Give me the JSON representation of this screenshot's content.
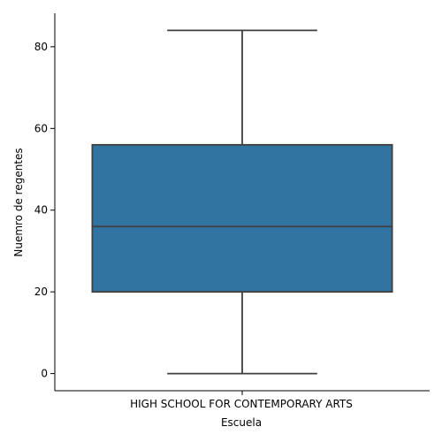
{
  "chart_data": {
    "type": "box",
    "xlabel": "Escuela",
    "ylabel": "Nuemro de regentes",
    "categories": [
      "HIGH SCHOOL FOR CONTEMPORARY ARTS"
    ],
    "boxes": [
      {
        "category": "HIGH SCHOOL FOR CONTEMPORARY ARTS",
        "min": 0,
        "q1": 20,
        "median": 36,
        "q3": 56,
        "max": 84
      }
    ],
    "yticks": [
      0,
      20,
      40,
      60,
      80
    ],
    "ylim": [
      -4.2,
      88.2
    ],
    "grid": false,
    "legend": "none",
    "colors": {
      "box_fill": "#3274a1",
      "line": "#3f3f3f",
      "axis": "#000000"
    }
  }
}
